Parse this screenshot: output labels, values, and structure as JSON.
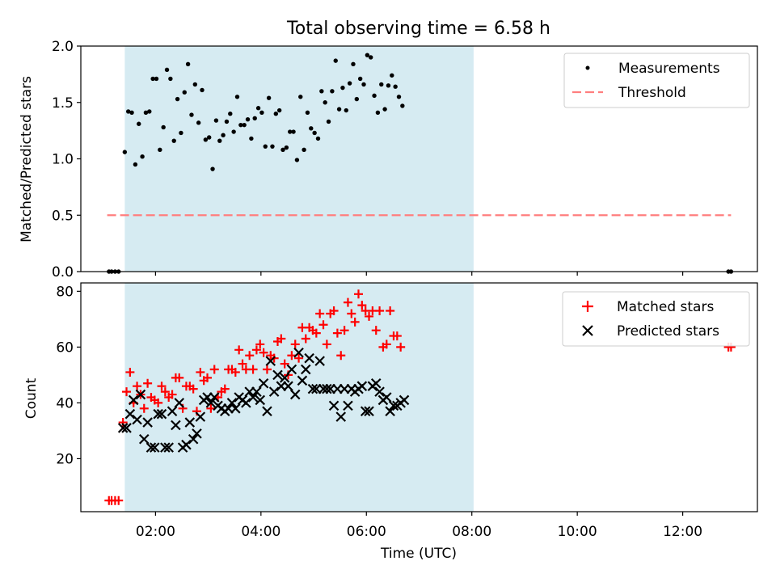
{
  "figure": {
    "title": "Total observing time = 6.58 h",
    "shade_start": "01:25",
    "shade_end": "08:02"
  },
  "chart_data": [
    {
      "type": "scatter",
      "ylabel": "Matched/Predicted stars",
      "xlim": [
        "00:35",
        "13:25"
      ],
      "ylim": [
        0,
        2.0
      ],
      "yticks": [
        "0.0",
        "0.5",
        "1.0",
        "1.5",
        "2.0"
      ],
      "legend_position": "upper-right",
      "legend": [
        {
          "label": "Measurements",
          "marker": "dot",
          "color": "#000000"
        },
        {
          "label": "Threshold",
          "marker": "dashed-line",
          "color": "#ff7f7f"
        }
      ],
      "threshold": {
        "value": 0.5,
        "x_start": "01:05",
        "x_end": "12:55",
        "color": "#ff7f7f"
      },
      "series": [
        {
          "color": "#000000",
          "points": [
            [
              "01:07",
              0.0
            ],
            [
              "01:10",
              0.0
            ],
            [
              "01:14",
              0.0
            ],
            [
              "01:18",
              0.0
            ],
            [
              "01:25",
              1.06
            ],
            [
              "01:29",
              1.42
            ],
            [
              "01:33",
              1.41
            ],
            [
              "01:37",
              0.95
            ],
            [
              "01:41",
              1.31
            ],
            [
              "01:45",
              1.02
            ],
            [
              "01:49",
              1.41
            ],
            [
              "01:53",
              1.42
            ],
            [
              "01:57",
              1.71
            ],
            [
              "02:01",
              1.71
            ],
            [
              "02:05",
              1.08
            ],
            [
              "02:09",
              1.28
            ],
            [
              "02:13",
              1.79
            ],
            [
              "02:17",
              1.71
            ],
            [
              "02:21",
              1.16
            ],
            [
              "02:25",
              1.53
            ],
            [
              "02:29",
              1.23
            ],
            [
              "02:33",
              1.59
            ],
            [
              "02:37",
              1.84
            ],
            [
              "02:41",
              1.39
            ],
            [
              "02:45",
              1.66
            ],
            [
              "02:49",
              1.32
            ],
            [
              "02:53",
              1.61
            ],
            [
              "02:57",
              1.17
            ],
            [
              "03:01",
              1.19
            ],
            [
              "03:05",
              0.91
            ],
            [
              "03:09",
              1.34
            ],
            [
              "03:13",
              1.16
            ],
            [
              "03:17",
              1.21
            ],
            [
              "03:21",
              1.33
            ],
            [
              "03:25",
              1.4
            ],
            [
              "03:29",
              1.24
            ],
            [
              "03:33",
              1.55
            ],
            [
              "03:37",
              1.3
            ],
            [
              "03:41",
              1.3
            ],
            [
              "03:45",
              1.35
            ],
            [
              "03:49",
              1.18
            ],
            [
              "03:53",
              1.36
            ],
            [
              "03:57",
              1.45
            ],
            [
              "04:01",
              1.41
            ],
            [
              "04:05",
              1.11
            ],
            [
              "04:09",
              1.54
            ],
            [
              "04:13",
              1.11
            ],
            [
              "04:17",
              1.4
            ],
            [
              "04:21",
              1.43
            ],
            [
              "04:25",
              1.08
            ],
            [
              "04:29",
              1.1
            ],
            [
              "04:33",
              1.24
            ],
            [
              "04:37",
              1.24
            ],
            [
              "04:41",
              0.99
            ],
            [
              "04:45",
              1.55
            ],
            [
              "04:49",
              1.08
            ],
            [
              "04:53",
              1.41
            ],
            [
              "04:57",
              1.27
            ],
            [
              "05:01",
              1.23
            ],
            [
              "05:05",
              1.18
            ],
            [
              "05:09",
              1.6
            ],
            [
              "05:13",
              1.5
            ],
            [
              "05:17",
              1.33
            ],
            [
              "05:21",
              1.6
            ],
            [
              "05:25",
              1.87
            ],
            [
              "05:29",
              1.44
            ],
            [
              "05:33",
              1.63
            ],
            [
              "05:37",
              1.43
            ],
            [
              "05:41",
              1.67
            ],
            [
              "05:45",
              1.84
            ],
            [
              "05:49",
              1.53
            ],
            [
              "05:53",
              1.71
            ],
            [
              "05:57",
              1.66
            ],
            [
              "06:01",
              1.92
            ],
            [
              "06:05",
              1.9
            ],
            [
              "06:09",
              1.56
            ],
            [
              "06:13",
              1.41
            ],
            [
              "06:17",
              1.66
            ],
            [
              "06:21",
              1.44
            ],
            [
              "06:25",
              1.65
            ],
            [
              "06:29",
              1.74
            ],
            [
              "06:33",
              1.64
            ],
            [
              "06:37",
              1.55
            ],
            [
              "06:41",
              1.47
            ],
            [
              "12:52",
              0.0
            ],
            [
              "12:55",
              0.0
            ]
          ]
        }
      ]
    },
    {
      "type": "scatter",
      "xlabel": "Time (UTC)",
      "ylabel": "Count",
      "xlim": [
        "00:35",
        "13:25"
      ],
      "ylim": [
        1,
        83
      ],
      "xticks": [
        "02:00",
        "04:00",
        "06:00",
        "08:00",
        "10:00",
        "12:00"
      ],
      "yticks": [
        "20",
        "40",
        "60",
        "80"
      ],
      "legend_position": "upper-right",
      "legend": [
        {
          "label": "Matched stars",
          "marker": "plus",
          "color": "#ff0000"
        },
        {
          "label": "Predicted stars",
          "marker": "x",
          "color": "#000000"
        }
      ],
      "series": [
        {
          "name": "Matched stars",
          "marker": "plus",
          "color": "#ff0000",
          "points": [
            [
              "01:07",
              5
            ],
            [
              "01:10",
              5
            ],
            [
              "01:14",
              5
            ],
            [
              "01:18",
              5
            ],
            [
              "01:23",
              33
            ],
            [
              "01:27",
              44
            ],
            [
              "01:31",
              51
            ],
            [
              "01:35",
              40
            ],
            [
              "01:39",
              46
            ],
            [
              "01:43",
              43
            ],
            [
              "01:47",
              38
            ],
            [
              "01:51",
              47
            ],
            [
              "01:55",
              42
            ],
            [
              "01:59",
              41
            ],
            [
              "02:03",
              40
            ],
            [
              "02:07",
              46
            ],
            [
              "02:11",
              44
            ],
            [
              "02:15",
              42
            ],
            [
              "02:19",
              43
            ],
            [
              "02:23",
              49
            ],
            [
              "02:27",
              49
            ],
            [
              "02:31",
              38
            ],
            [
              "02:35",
              46
            ],
            [
              "02:39",
              46
            ],
            [
              "02:43",
              45
            ],
            [
              "02:47",
              37
            ],
            [
              "02:51",
              51
            ],
            [
              "02:55",
              48
            ],
            [
              "02:59",
              49
            ],
            [
              "03:03",
              38
            ],
            [
              "03:07",
              52
            ],
            [
              "03:11",
              42
            ],
            [
              "03:15",
              44
            ],
            [
              "03:19",
              45
            ],
            [
              "03:23",
              52
            ],
            [
              "03:27",
              52
            ],
            [
              "03:31",
              51
            ],
            [
              "03:35",
              59
            ],
            [
              "03:39",
              54
            ],
            [
              "03:43",
              52
            ],
            [
              "03:47",
              57
            ],
            [
              "03:51",
              52
            ],
            [
              "03:55",
              59
            ],
            [
              "03:59",
              61
            ],
            [
              "04:03",
              58
            ],
            [
              "04:07",
              52
            ],
            [
              "04:11",
              57
            ],
            [
              "04:15",
              56
            ],
            [
              "04:19",
              62
            ],
            [
              "04:23",
              63
            ],
            [
              "04:27",
              54
            ],
            [
              "04:31",
              50
            ],
            [
              "04:35",
              57
            ],
            [
              "04:39",
              61
            ],
            [
              "04:43",
              56
            ],
            [
              "04:47",
              67
            ],
            [
              "04:51",
              63
            ],
            [
              "04:55",
              67
            ],
            [
              "04:59",
              66
            ],
            [
              "05:03",
              65
            ],
            [
              "05:07",
              72
            ],
            [
              "05:11",
              68
            ],
            [
              "05:15",
              61
            ],
            [
              "05:19",
              72
            ],
            [
              "05:23",
              73
            ],
            [
              "05:27",
              65
            ],
            [
              "05:31",
              57
            ],
            [
              "05:35",
              66
            ],
            [
              "05:39",
              76
            ],
            [
              "05:43",
              72
            ],
            [
              "05:47",
              69
            ],
            [
              "05:51",
              79
            ],
            [
              "05:55",
              75
            ],
            [
              "05:59",
              73
            ],
            [
              "06:03",
              71
            ],
            [
              "06:07",
              73
            ],
            [
              "06:11",
              66
            ],
            [
              "06:15",
              73
            ],
            [
              "06:19",
              60
            ],
            [
              "06:23",
              61
            ],
            [
              "06:27",
              73
            ],
            [
              "06:31",
              64
            ],
            [
              "06:35",
              64
            ],
            [
              "06:39",
              60
            ],
            [
              "12:52",
              60
            ],
            [
              "12:55",
              60
            ]
          ]
        },
        {
          "name": "Predicted stars",
          "marker": "x",
          "color": "#000000",
          "points": [
            [
              "01:23",
              31
            ],
            [
              "01:27",
              31
            ],
            [
              "01:31",
              36
            ],
            [
              "01:35",
              41
            ],
            [
              "01:39",
              34
            ],
            [
              "01:43",
              43
            ],
            [
              "01:47",
              27
            ],
            [
              "01:51",
              33
            ],
            [
              "01:55",
              24
            ],
            [
              "01:59",
              24
            ],
            [
              "02:03",
              36
            ],
            [
              "02:07",
              36
            ],
            [
              "02:11",
              24
            ],
            [
              "02:15",
              24
            ],
            [
              "02:19",
              37
            ],
            [
              "02:23",
              32
            ],
            [
              "02:27",
              40
            ],
            [
              "02:31",
              24
            ],
            [
              "02:35",
              25
            ],
            [
              "02:39",
              33
            ],
            [
              "02:43",
              27
            ],
            [
              "02:47",
              29
            ],
            [
              "02:51",
              35
            ],
            [
              "02:55",
              41
            ],
            [
              "02:59",
              42
            ],
            [
              "03:03",
              40
            ],
            [
              "03:07",
              42
            ],
            [
              "03:11",
              39
            ],
            [
              "03:15",
              38
            ],
            [
              "03:19",
              37
            ],
            [
              "03:23",
              38
            ],
            [
              "03:27",
              40
            ],
            [
              "03:31",
              38
            ],
            [
              "03:35",
              42
            ],
            [
              "03:39",
              41
            ],
            [
              "03:43",
              40
            ],
            [
              "03:47",
              44
            ],
            [
              "03:51",
              42
            ],
            [
              "03:55",
              44
            ],
            [
              "03:59",
              41
            ],
            [
              "04:03",
              47
            ],
            [
              "04:07",
              37
            ],
            [
              "04:11",
              55
            ],
            [
              "04:15",
              44
            ],
            [
              "04:19",
              50
            ],
            [
              "04:23",
              46
            ],
            [
              "04:27",
              49
            ],
            [
              "04:31",
              46
            ],
            [
              "04:35",
              52
            ],
            [
              "04:39",
              43
            ],
            [
              "04:43",
              58
            ],
            [
              "04:47",
              48
            ],
            [
              "04:51",
              52
            ],
            [
              "04:55",
              56
            ],
            [
              "04:59",
              45
            ],
            [
              "05:03",
              45
            ],
            [
              "05:07",
              55
            ],
            [
              "05:11",
              45
            ],
            [
              "05:15",
              45
            ],
            [
              "05:19",
              45
            ],
            [
              "05:23",
              39
            ],
            [
              "05:27",
              45
            ],
            [
              "05:31",
              35
            ],
            [
              "05:35",
              45
            ],
            [
              "05:39",
              39
            ],
            [
              "05:43",
              45
            ],
            [
              "05:47",
              44
            ],
            [
              "05:51",
              45
            ],
            [
              "05:55",
              46
            ],
            [
              "05:59",
              37
            ],
            [
              "06:03",
              37
            ],
            [
              "06:07",
              46
            ],
            [
              "06:11",
              47
            ],
            [
              "06:15",
              44
            ],
            [
              "06:19",
              41
            ],
            [
              "06:23",
              42
            ],
            [
              "06:27",
              37
            ],
            [
              "06:31",
              39
            ],
            [
              "06:35",
              39
            ],
            [
              "06:39",
              40
            ],
            [
              "06:43",
              41
            ]
          ]
        }
      ]
    }
  ]
}
